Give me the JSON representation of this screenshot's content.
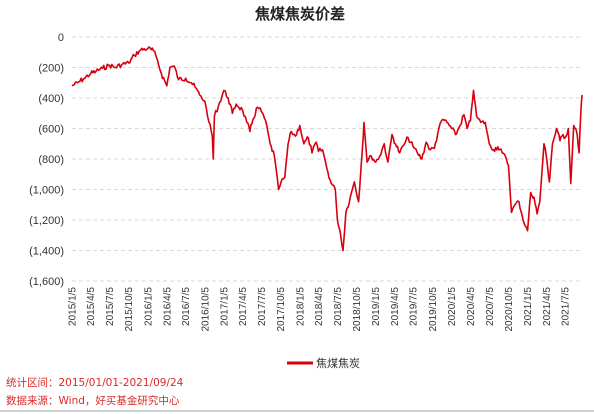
{
  "chart_data": {
    "type": "line",
    "title": "焦煤焦炭价差",
    "ylim": [
      -1600,
      0
    ],
    "y_ticks": [
      0,
      -200,
      -400,
      -600,
      -800,
      -1000,
      -1200,
      -1400,
      -1600
    ],
    "y_tick_labels": [
      "0",
      "(200)",
      "(400)",
      "(600)",
      "(800)",
      "(1,000)",
      "(1,200)",
      "(1,400)",
      "(1,600)"
    ],
    "x_range": [
      "2015-01-05",
      "2021-09-24"
    ],
    "x_ticks": [
      "2015-01-05",
      "2015-04-05",
      "2015-07-05",
      "2015-10-05",
      "2016-01-05",
      "2016-04-05",
      "2016-07-05",
      "2016-10-05",
      "2017-01-05",
      "2017-04-05",
      "2017-07-05",
      "2017-10-05",
      "2018-01-05",
      "2018-04-05",
      "2018-07-05",
      "2018-10-05",
      "2019-01-05",
      "2019-04-05",
      "2019-07-05",
      "2019-10-05",
      "2020-01-05",
      "2020-04-05",
      "2020-07-05",
      "2020-10-05",
      "2021-01-05",
      "2021-04-05",
      "2021-07-05"
    ],
    "x_tick_labels": [
      "2015/1/5",
      "2015/4/5",
      "2015/7/5",
      "2015/10/5",
      "2016/1/5",
      "2016/4/5",
      "2016/7/5",
      "2016/10/5",
      "2017/1/5",
      "2017/4/5",
      "2017/7/5",
      "2017/10/5",
      "2018/1/5",
      "2018/4/5",
      "2018/7/5",
      "2018/10/5",
      "2019/1/5",
      "2019/4/5",
      "2019/7/5",
      "2019/10/5",
      "2020/1/5",
      "2020/4/5",
      "2020/7/5",
      "2020/10/5",
      "2021/1/5",
      "2021/4/5",
      "2021/7/5"
    ],
    "grid": "horizontal-dashed",
    "legend_position": "bottom-center",
    "series": [
      {
        "name": "焦煤焦炭",
        "color": "#d7000f",
        "points": [
          [
            "2015-01-05",
            -320
          ],
          [
            "2015-02-01",
            -300
          ],
          [
            "2015-03-01",
            -275
          ],
          [
            "2015-04-05",
            -240
          ],
          [
            "2015-05-01",
            -225
          ],
          [
            "2015-06-01",
            -205
          ],
          [
            "2015-07-05",
            -185
          ],
          [
            "2015-08-01",
            -200
          ],
          [
            "2015-09-01",
            -180
          ],
          [
            "2015-10-05",
            -170
          ],
          [
            "2015-11-01",
            -120
          ],
          [
            "2015-12-01",
            -85
          ],
          [
            "2016-01-05",
            -75
          ],
          [
            "2016-02-01",
            -90
          ],
          [
            "2016-02-20",
            -150
          ],
          [
            "2016-03-10",
            -240
          ],
          [
            "2016-04-05",
            -320
          ],
          [
            "2016-04-20",
            -200
          ],
          [
            "2016-05-10",
            -190
          ],
          [
            "2016-06-01",
            -280
          ],
          [
            "2016-07-05",
            -270
          ],
          [
            "2016-08-01",
            -300
          ],
          [
            "2016-08-20",
            -330
          ],
          [
            "2016-09-10",
            -380
          ],
          [
            "2016-10-05",
            -420
          ],
          [
            "2016-10-25",
            -560
          ],
          [
            "2016-11-10",
            -650
          ],
          [
            "2016-11-15",
            -800
          ],
          [
            "2016-11-20",
            -520
          ],
          [
            "2016-12-10",
            -450
          ],
          [
            "2017-01-05",
            -350
          ],
          [
            "2017-01-25",
            -400
          ],
          [
            "2017-02-15",
            -500
          ],
          [
            "2017-03-05",
            -440
          ],
          [
            "2017-04-05",
            -480
          ],
          [
            "2017-04-25",
            -560
          ],
          [
            "2017-05-10",
            -620
          ],
          [
            "2017-05-25",
            -540
          ],
          [
            "2017-06-15",
            -460
          ],
          [
            "2017-07-05",
            -490
          ],
          [
            "2017-07-25",
            -550
          ],
          [
            "2017-08-15",
            -700
          ],
          [
            "2017-09-05",
            -780
          ],
          [
            "2017-09-25",
            -1000
          ],
          [
            "2017-10-05",
            -960
          ],
          [
            "2017-10-25",
            -920
          ],
          [
            "2017-11-10",
            -700
          ],
          [
            "2017-11-25",
            -620
          ],
          [
            "2017-12-15",
            -650
          ],
          [
            "2018-01-05",
            -580
          ],
          [
            "2018-01-25",
            -700
          ],
          [
            "2018-02-15",
            -660
          ],
          [
            "2018-03-05",
            -760
          ],
          [
            "2018-03-25",
            -690
          ],
          [
            "2018-04-05",
            -750
          ],
          [
            "2018-04-25",
            -740
          ],
          [
            "2018-05-15",
            -860
          ],
          [
            "2018-06-05",
            -960
          ],
          [
            "2018-06-25",
            -1000
          ],
          [
            "2018-07-05",
            -1200
          ],
          [
            "2018-07-20",
            -1290
          ],
          [
            "2018-08-01",
            -1400
          ],
          [
            "2018-08-15",
            -1150
          ],
          [
            "2018-09-05",
            -1050
          ],
          [
            "2018-09-25",
            -950
          ],
          [
            "2018-10-15",
            -1080
          ],
          [
            "2018-11-01",
            -760
          ],
          [
            "2018-11-10",
            -560
          ],
          [
            "2018-11-25",
            -820
          ],
          [
            "2018-12-15",
            -780
          ],
          [
            "2019-01-05",
            -820
          ],
          [
            "2019-01-25",
            -780
          ],
          [
            "2019-02-15",
            -700
          ],
          [
            "2019-03-05",
            -820
          ],
          [
            "2019-03-25",
            -640
          ],
          [
            "2019-04-10",
            -700
          ],
          [
            "2019-05-01",
            -760
          ],
          [
            "2019-05-20",
            -710
          ],
          [
            "2019-06-10",
            -660
          ],
          [
            "2019-07-05",
            -720
          ],
          [
            "2019-07-25",
            -760
          ],
          [
            "2019-08-15",
            -800
          ],
          [
            "2019-09-05",
            -690
          ],
          [
            "2019-09-25",
            -740
          ],
          [
            "2019-10-15",
            -730
          ],
          [
            "2019-11-05",
            -600
          ],
          [
            "2019-11-25",
            -540
          ],
          [
            "2019-12-15",
            -560
          ],
          [
            "2020-01-05",
            -600
          ],
          [
            "2020-01-25",
            -640
          ],
          [
            "2020-02-15",
            -580
          ],
          [
            "2020-03-05",
            -510
          ],
          [
            "2020-03-20",
            -600
          ],
          [
            "2020-04-05",
            -550
          ],
          [
            "2020-04-20",
            -350
          ],
          [
            "2020-05-05",
            -520
          ],
          [
            "2020-05-25",
            -560
          ],
          [
            "2020-06-15",
            -560
          ],
          [
            "2020-07-05",
            -700
          ],
          [
            "2020-07-25",
            -740
          ],
          [
            "2020-08-15",
            -720
          ],
          [
            "2020-09-05",
            -760
          ],
          [
            "2020-09-25",
            -800
          ],
          [
            "2020-10-05",
            -840
          ],
          [
            "2020-10-20",
            -1150
          ],
          [
            "2020-11-05",
            -1100
          ],
          [
            "2020-11-25",
            -1080
          ],
          [
            "2020-12-10",
            -1170
          ],
          [
            "2020-12-25",
            -1240
          ],
          [
            "2021-01-05",
            -1270
          ],
          [
            "2021-01-20",
            -1020
          ],
          [
            "2021-02-05",
            -1050
          ],
          [
            "2021-02-20",
            -1160
          ],
          [
            "2021-03-05",
            -1080
          ],
          [
            "2021-03-25",
            -700
          ],
          [
            "2021-04-05",
            -780
          ],
          [
            "2021-04-20",
            -950
          ],
          [
            "2021-05-05",
            -700
          ],
          [
            "2021-05-25",
            -600
          ],
          [
            "2021-06-10",
            -680
          ],
          [
            "2021-06-25",
            -640
          ],
          [
            "2021-07-05",
            -660
          ],
          [
            "2021-07-20",
            -600
          ],
          [
            "2021-08-01",
            -960
          ],
          [
            "2021-08-15",
            -580
          ],
          [
            "2021-09-01",
            -640
          ],
          [
            "2021-09-10",
            -760
          ],
          [
            "2021-09-18",
            -500
          ],
          [
            "2021-09-24",
            -380
          ]
        ]
      }
    ]
  },
  "footer": {
    "range_note": "统计区间：2015/01/01-2021/09/24",
    "source_note": "数据来源：Wind，好买基金研究中心"
  }
}
